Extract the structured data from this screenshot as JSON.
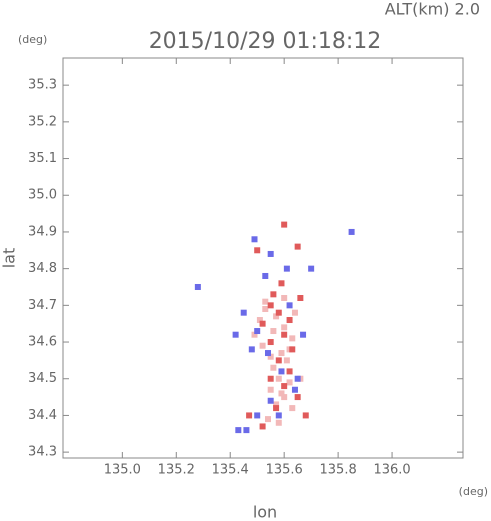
{
  "chart_data": {
    "type": "scatter",
    "title": "2015/10/29 01:18:12",
    "annotation": "ALT(km) 2.0",
    "x_unit": "(deg)",
    "y_unit": "(deg)",
    "xlabel": "lon",
    "ylabel": "lat",
    "xlim": [
      134.78,
      136.263
    ],
    "ylim": [
      34.284,
      35.374
    ],
    "xticks": [
      {
        "value": 135,
        "label": "135.0"
      },
      135.2,
      135.4,
      135.6,
      135.8,
      {
        "value": 136,
        "label": "136.0"
      }
    ],
    "yticks": [
      34.3,
      34.4,
      34.5,
      34.6,
      34.7,
      34.8,
      34.9,
      {
        "value": 35,
        "label": "35.0"
      },
      35.1,
      35.2,
      35.3
    ],
    "series": [
      {
        "color": "#f2b8b8",
        "x": [
          135.53,
          135.57,
          135.6,
          135.63,
          135.56,
          135.52,
          135.59,
          135.61,
          135.58,
          135.62,
          135.55,
          135.6,
          135.57,
          135.63,
          135.54,
          135.51,
          135.49,
          135.56,
          135.6,
          135.64,
          135.58,
          135.53,
          135.62,
          135.55,
          135.59,
          135.66
        ],
        "y": [
          34.69,
          34.67,
          34.64,
          34.61,
          34.63,
          34.59,
          34.57,
          34.55,
          34.5,
          34.49,
          34.47,
          34.45,
          34.43,
          34.42,
          34.39,
          34.66,
          34.62,
          34.53,
          34.72,
          34.68,
          34.38,
          34.71,
          34.58,
          34.56,
          34.46,
          34.5
        ]
      },
      {
        "color": "#e05a5a",
        "x": [
          135.55,
          135.58,
          135.62,
          135.6,
          135.55,
          135.52,
          135.58,
          135.62,
          135.6,
          135.65,
          135.57,
          135.47,
          135.52,
          135.6,
          135.65,
          135.5,
          135.56,
          135.66,
          135.63,
          135.55,
          135.68,
          135.59
        ],
        "y": [
          34.7,
          34.68,
          34.66,
          34.62,
          34.6,
          34.65,
          34.55,
          34.52,
          34.48,
          34.45,
          34.42,
          34.4,
          34.37,
          34.92,
          34.86,
          34.85,
          34.73,
          34.72,
          34.58,
          34.5,
          34.4,
          34.76
        ]
      },
      {
        "color": "#6a6ae8",
        "x": [
          135.45,
          135.5,
          135.48,
          135.62,
          135.54,
          135.59,
          135.64,
          135.55,
          135.5,
          135.58,
          135.43,
          135.46,
          135.49,
          135.55,
          135.7,
          135.85,
          135.42,
          135.67,
          135.61,
          135.53,
          135.28,
          135.65
        ],
        "y": [
          34.68,
          34.63,
          34.58,
          34.7,
          34.57,
          34.52,
          34.47,
          34.44,
          34.4,
          34.4,
          34.36,
          34.36,
          34.88,
          34.84,
          34.8,
          34.9,
          34.62,
          34.62,
          34.8,
          34.78,
          34.75,
          34.5
        ]
      }
    ]
  }
}
